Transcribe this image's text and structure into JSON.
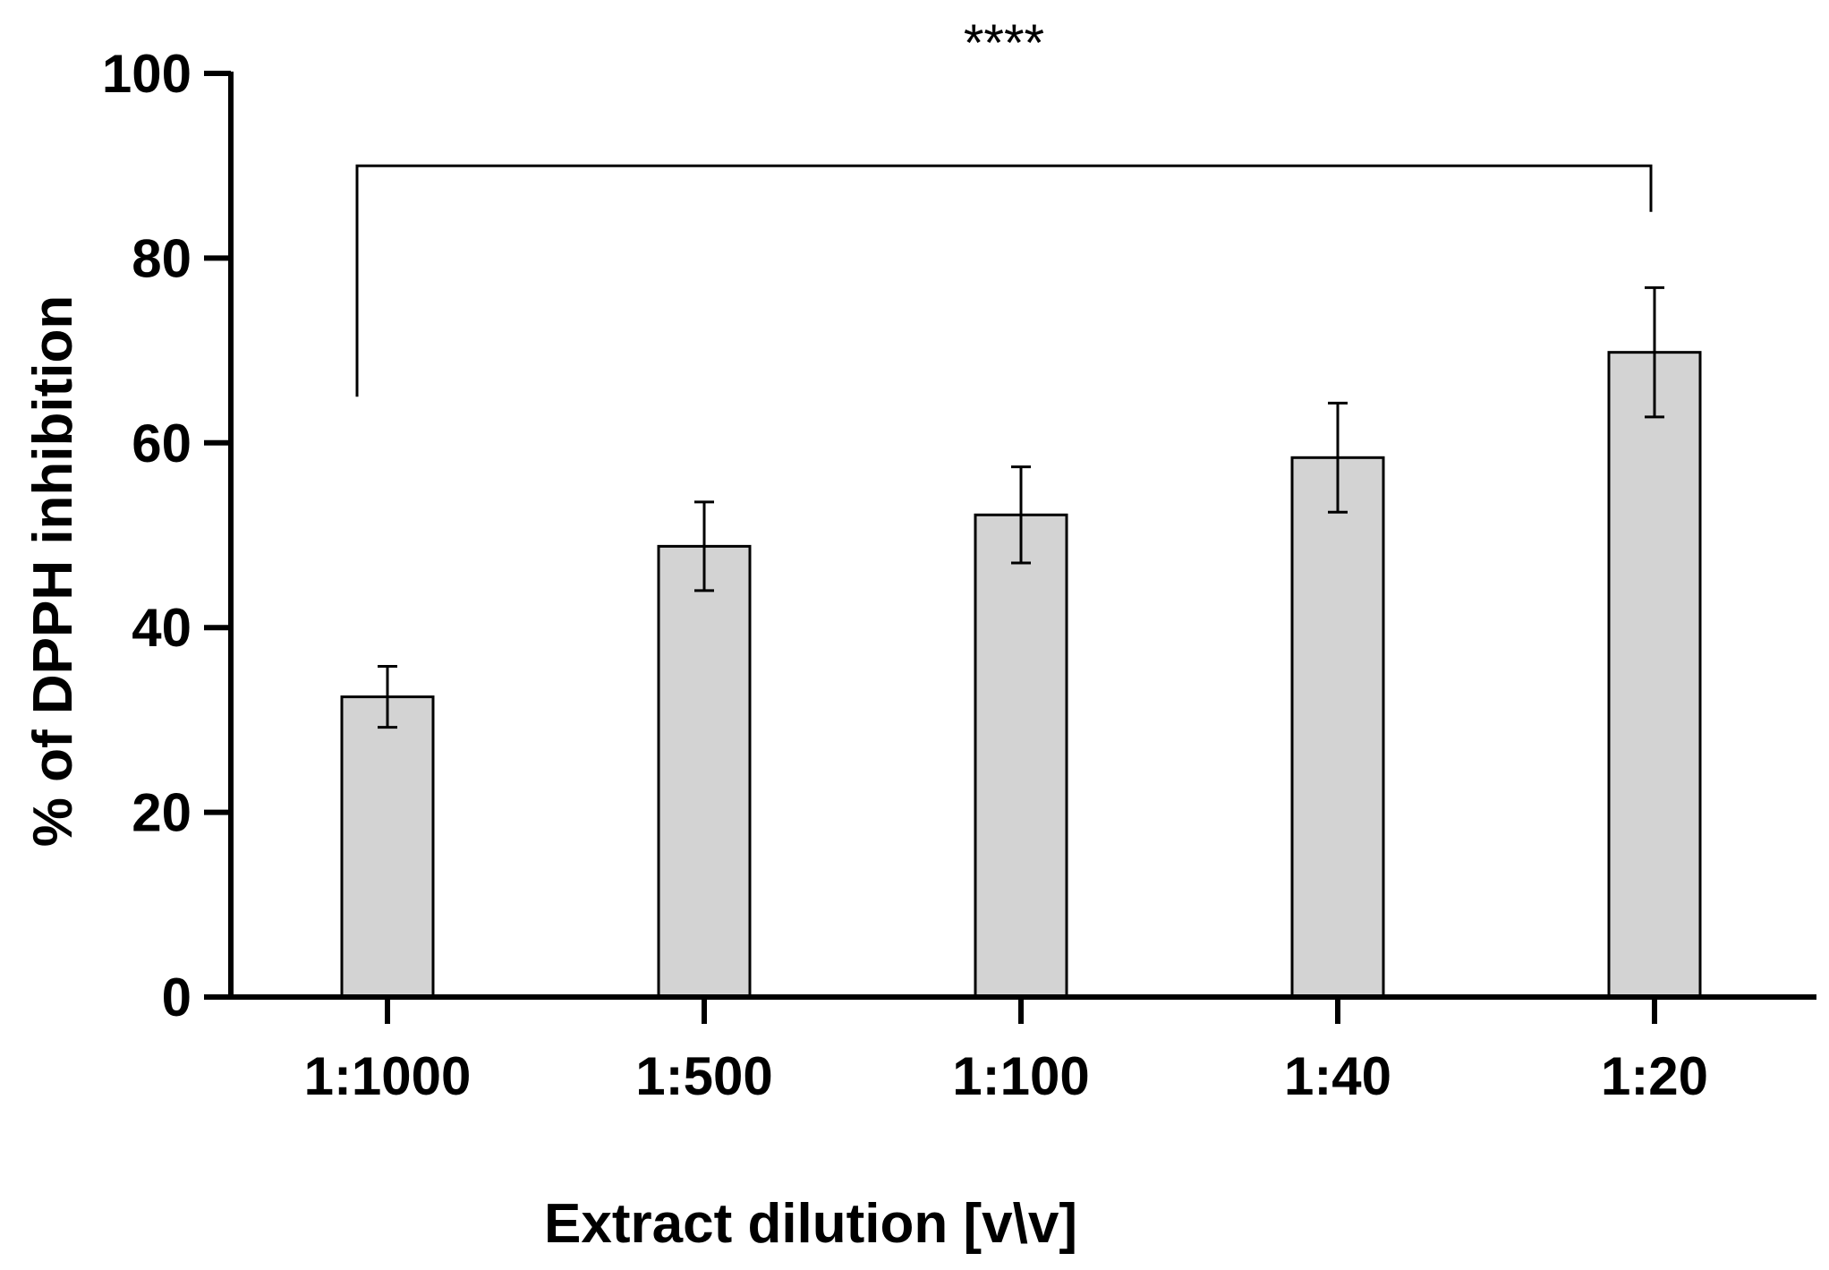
{
  "chart_data": {
    "type": "bar",
    "title": "",
    "xlabel": "Extract dilution [v\\v]",
    "ylabel": "% of DPPH inhibition",
    "categories": [
      "1:1000",
      "1:500",
      "1:100",
      "1:40",
      "1:20"
    ],
    "values": [
      32.5,
      48.8,
      52.2,
      58.4,
      69.8
    ],
    "errors": [
      3.3,
      4.8,
      5.2,
      5.9,
      7.0
    ],
    "ylim": [
      0,
      100
    ],
    "yticks": [
      "0",
      "20",
      "40",
      "60",
      "80",
      "100"
    ],
    "grid": false,
    "legend": "none",
    "bar_color": "#d3d3d3",
    "annotation": {
      "text": "****",
      "from_category": "1:1000",
      "to_category": "1:20",
      "bracket_value": 90,
      "left_end_value": 65,
      "right_end_value": 85
    }
  }
}
